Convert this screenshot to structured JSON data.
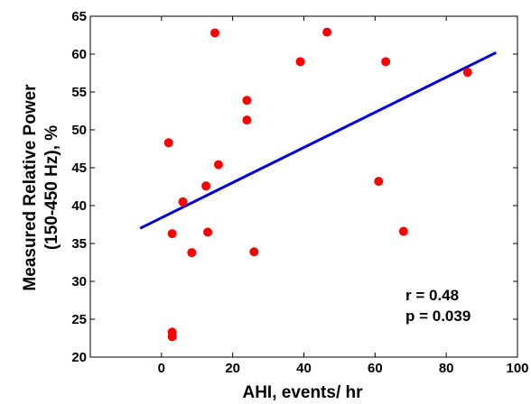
{
  "chart_data": {
    "type": "scatter",
    "title": "",
    "xlabel": "AHI, events/ hr",
    "ylabel_lines": [
      "Measured Relative Power",
      "(150-450 Hz), %"
    ],
    "xlim": [
      -20,
      100
    ],
    "ylim": [
      20,
      65
    ],
    "xticks": [
      0,
      20,
      40,
      60,
      80,
      100
    ],
    "yticks": [
      20,
      25,
      30,
      35,
      40,
      45,
      50,
      55,
      60,
      65
    ],
    "grid": false,
    "legend": "none",
    "colors": {
      "points": "#ff0000",
      "fit_line": "#0000dd",
      "axis": "#000000"
    },
    "points": [
      {
        "x": 2,
        "y": 48.3
      },
      {
        "x": 3,
        "y": 23.3
      },
      {
        "x": 3,
        "y": 22.7
      },
      {
        "x": 3,
        "y": 36.3
      },
      {
        "x": 6,
        "y": 40.5
      },
      {
        "x": 8.5,
        "y": 33.8
      },
      {
        "x": 12.5,
        "y": 42.6
      },
      {
        "x": 13,
        "y": 36.5
      },
      {
        "x": 15,
        "y": 62.8
      },
      {
        "x": 16,
        "y": 45.4
      },
      {
        "x": 24,
        "y": 53.9
      },
      {
        "x": 24,
        "y": 51.3
      },
      {
        "x": 26,
        "y": 33.9
      },
      {
        "x": 39,
        "y": 59.0
      },
      {
        "x": 46.5,
        "y": 62.9
      },
      {
        "x": 61,
        "y": 43.2
      },
      {
        "x": 63,
        "y": 59.0
      },
      {
        "x": 68,
        "y": 36.6
      },
      {
        "x": 86,
        "y": 57.6
      }
    ],
    "fit_line": {
      "x": [
        -6,
        94
      ],
      "y": [
        37.0,
        60.2
      ]
    },
    "annotations": [
      "r = 0.48",
      "p = 0.039"
    ]
  }
}
